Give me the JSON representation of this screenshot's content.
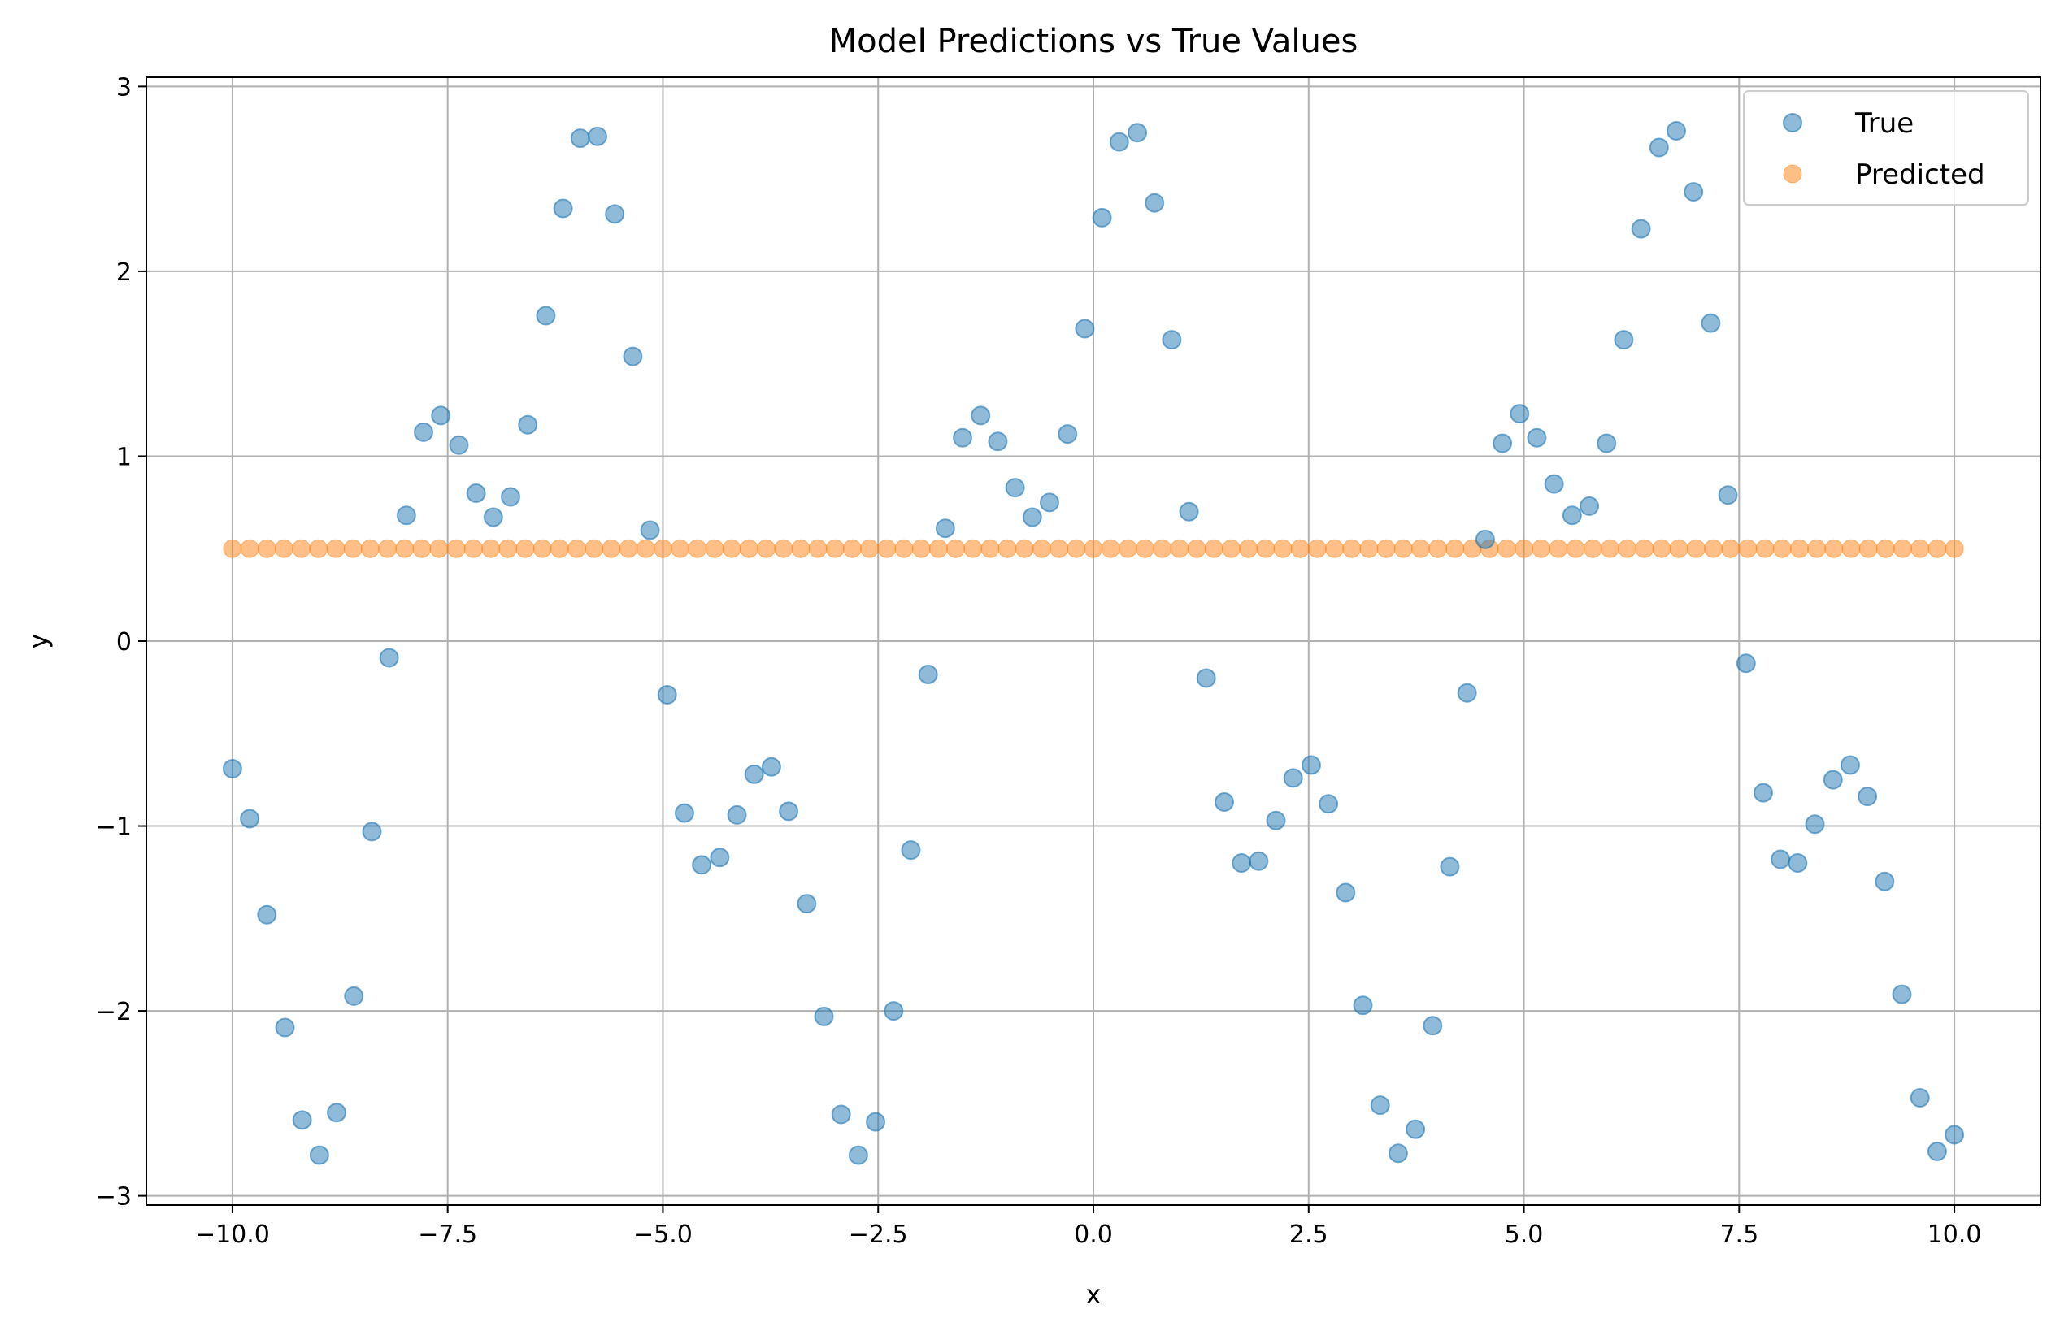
{
  "chart_data": {
    "type": "scatter",
    "title": "Model Predictions vs True Values",
    "xlabel": "x",
    "ylabel": "y",
    "xlim": [
      -11.0,
      11.0
    ],
    "ylim": [
      -3.05,
      3.05
    ],
    "grid": true,
    "legend_position": "top-right",
    "xticks": [
      -10.0,
      -7.5,
      -5.0,
      -2.5,
      0.0,
      2.5,
      5.0,
      7.5,
      10.0
    ],
    "xtick_labels": [
      "−10.0",
      "−7.5",
      "−5.0",
      "−2.5",
      "0.0",
      "2.5",
      "5.0",
      "7.5",
      "10.0"
    ],
    "yticks": [
      -3,
      -2,
      -1,
      0,
      1,
      2,
      3
    ],
    "ytick_labels": [
      "−3",
      "−2",
      "−1",
      "0",
      "1",
      "2",
      "3"
    ],
    "series": [
      {
        "name": "True",
        "color": "#1f77b4",
        "points": [
          [
            -10.0,
            -0.69
          ],
          [
            -9.8,
            -0.96
          ],
          [
            -9.6,
            -1.48
          ],
          [
            -9.39,
            -2.09
          ],
          [
            -9.19,
            -2.59
          ],
          [
            -8.99,
            -2.78
          ],
          [
            -8.79,
            -2.55
          ],
          [
            -8.59,
            -1.92
          ],
          [
            -8.38,
            -1.03
          ],
          [
            -8.18,
            -0.09
          ],
          [
            -7.98,
            0.68
          ],
          [
            -7.78,
            1.13
          ],
          [
            -7.58,
            1.22
          ],
          [
            -7.37,
            1.06
          ],
          [
            -7.17,
            0.8
          ],
          [
            -6.97,
            0.67
          ],
          [
            -6.77,
            0.78
          ],
          [
            -6.57,
            1.17
          ],
          [
            -6.36,
            1.76
          ],
          [
            -6.16,
            2.34
          ],
          [
            -5.96,
            2.72
          ],
          [
            -5.76,
            2.73
          ],
          [
            -5.56,
            2.31
          ],
          [
            -5.35,
            1.54
          ],
          [
            -5.15,
            0.6
          ],
          [
            -4.95,
            -0.29
          ],
          [
            -4.75,
            -0.93
          ],
          [
            -4.55,
            -1.21
          ],
          [
            -4.34,
            -1.17
          ],
          [
            -4.14,
            -0.94
          ],
          [
            -3.94,
            -0.72
          ],
          [
            -3.74,
            -0.68
          ],
          [
            -3.54,
            -0.92
          ],
          [
            -3.33,
            -1.42
          ],
          [
            -3.13,
            -2.03
          ],
          [
            -2.93,
            -2.56
          ],
          [
            -2.73,
            -2.78
          ],
          [
            -2.53,
            -2.6
          ],
          [
            -2.32,
            -2.0
          ],
          [
            -2.12,
            -1.13
          ],
          [
            -1.92,
            -0.18
          ],
          [
            -1.72,
            0.61
          ],
          [
            -1.52,
            1.1
          ],
          [
            -1.31,
            1.22
          ],
          [
            -1.11,
            1.08
          ],
          [
            -0.91,
            0.83
          ],
          [
            -0.71,
            0.67
          ],
          [
            -0.51,
            0.75
          ],
          [
            -0.3,
            1.12
          ],
          [
            -0.1,
            1.69
          ],
          [
            0.1,
            2.29
          ],
          [
            0.3,
            2.7
          ],
          [
            0.51,
            2.75
          ],
          [
            0.71,
            2.37
          ],
          [
            0.91,
            1.63
          ],
          [
            1.11,
            0.7
          ],
          [
            1.31,
            -0.2
          ],
          [
            1.52,
            -0.87
          ],
          [
            1.72,
            -1.2
          ],
          [
            1.92,
            -1.19
          ],
          [
            2.12,
            -0.97
          ],
          [
            2.32,
            -0.74
          ],
          [
            2.53,
            -0.67
          ],
          [
            2.73,
            -0.88
          ],
          [
            2.93,
            -1.36
          ],
          [
            3.13,
            -1.97
          ],
          [
            3.33,
            -2.51
          ],
          [
            3.54,
            -2.77
          ],
          [
            3.74,
            -2.64
          ],
          [
            3.94,
            -2.08
          ],
          [
            4.14,
            -1.22
          ],
          [
            4.34,
            -0.28
          ],
          [
            4.55,
            0.55
          ],
          [
            4.75,
            1.07
          ],
          [
            4.95,
            1.23
          ],
          [
            5.15,
            1.1
          ],
          [
            5.35,
            0.85
          ],
          [
            5.56,
            0.68
          ],
          [
            5.76,
            0.73
          ],
          [
            5.96,
            1.07
          ],
          [
            6.16,
            1.63
          ],
          [
            6.36,
            2.23
          ],
          [
            6.57,
            2.67
          ],
          [
            6.77,
            2.76
          ],
          [
            6.97,
            2.43
          ],
          [
            7.17,
            1.72
          ],
          [
            7.37,
            0.79
          ],
          [
            7.58,
            -0.12
          ],
          [
            7.78,
            -0.82
          ],
          [
            7.98,
            -1.18
          ],
          [
            8.18,
            -1.2
          ],
          [
            8.38,
            -0.99
          ],
          [
            8.59,
            -0.75
          ],
          [
            8.79,
            -0.67
          ],
          [
            8.99,
            -0.84
          ],
          [
            9.19,
            -1.3
          ],
          [
            9.39,
            -1.91
          ],
          [
            9.6,
            -2.47
          ],
          [
            9.8,
            -2.76
          ],
          [
            10.0,
            -2.67
          ]
        ]
      },
      {
        "name": "Predicted",
        "color": "#ff7f0e",
        "constant_y": 0.5,
        "x_start": -10.0,
        "x_end": 10.0,
        "count": 101
      }
    ]
  }
}
